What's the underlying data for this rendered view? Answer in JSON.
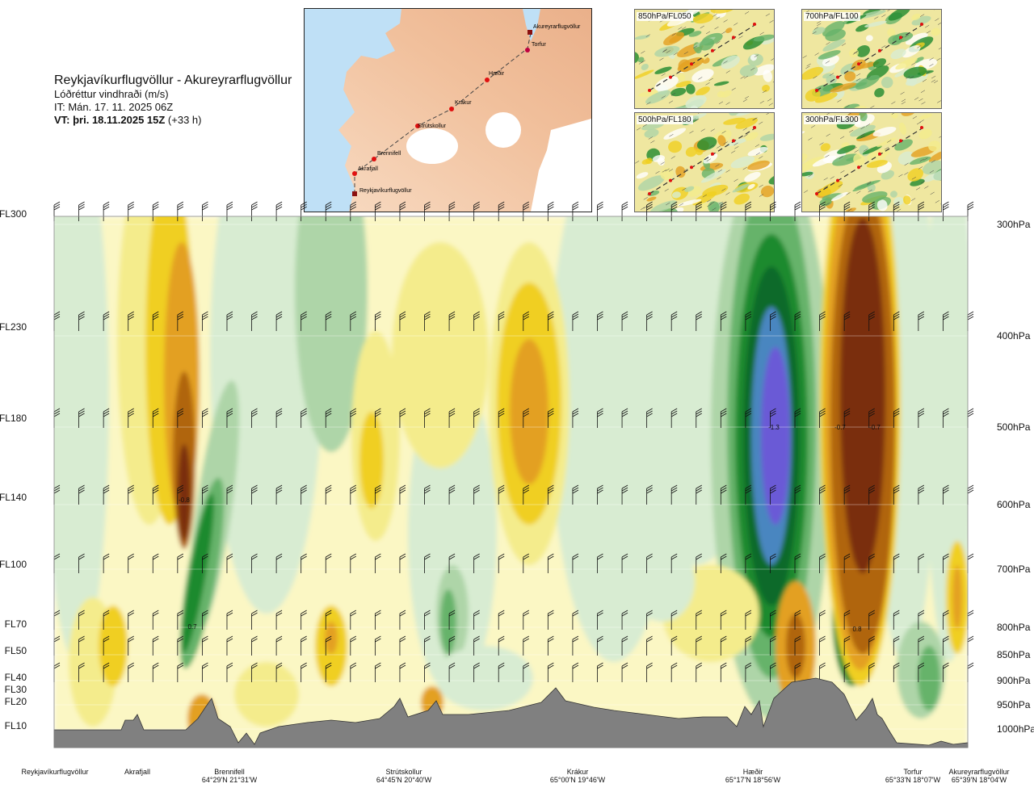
{
  "header": {
    "title": "Reykjavíkurflugvöllur - Akureyrarflugvöllur",
    "subtitle": "Lóðréttur vindhraði (m/s)",
    "issue_time": "IT: Mán. 17. 11. 2025 06Z",
    "valid_time_bold": "VT: þri. 18.11.2025 15Z",
    "valid_time_offset": " (+33 h)"
  },
  "route_map": {
    "points": [
      "Akureyrarflugvöllur",
      "Torfur",
      "Hæðir",
      "Krákur",
      "Strútskollur",
      "Brennifell",
      "Akrafjall",
      "Reykjavíkurflugvöllur"
    ]
  },
  "inset_maps": [
    {
      "label": "850hPa/FL050"
    },
    {
      "label": "700hPa/FL100"
    },
    {
      "label": "500hPa/FL180"
    },
    {
      "label": "300hPa/FL300"
    }
  ],
  "chart_data": {
    "type": "heatmap",
    "title": "Lóðréttur vindhraði (m/s)",
    "y_left_ticks": [
      "FL300",
      "FL230",
      "FL180",
      "FL140",
      "FL100",
      "FL70",
      "FL50",
      "FL40",
      "FL30",
      "FL20",
      "FL10"
    ],
    "y_right_ticks": [
      "300hPa",
      "400hPa",
      "500hPa",
      "600hPa",
      "700hPa",
      "800hPa",
      "850hPa",
      "900hPa",
      "950hPa",
      "1000hPa"
    ],
    "pressure_levels_hpa": [
      300,
      400,
      500,
      600,
      700,
      800,
      850,
      900,
      950,
      1000
    ],
    "waypoints": [
      {
        "name": "Reykjavíkurflugvöllur",
        "coord": ""
      },
      {
        "name": "Akrafjall",
        "coord": ""
      },
      {
        "name": "Brennifell",
        "coord": "64°29'N 21°31'W"
      },
      {
        "name": "Strútskollur",
        "coord": "64°45'N 20°40'W"
      },
      {
        "name": "Krákur",
        "coord": "65°00'N 19°46'W"
      },
      {
        "name": "Hæðir",
        "coord": "65°17'N 18°56'W"
      },
      {
        "name": "Torfur",
        "coord": "65°33'N 18°07'W"
      },
      {
        "name": "Akureyrarflugvöllur",
        "coord": "65°39'N 18°04'W"
      }
    ],
    "annotations": [
      "-0.8",
      "0.7",
      "-1.3",
      "-0.7",
      "-0.7",
      "0.8"
    ],
    "colors": {
      "strong_down": "#7a2e0a",
      "down_3": "#b0650f",
      "down_2": "#e3a021",
      "down_1": "#f0cf20",
      "down_0": "#f4ec8c",
      "neutral_down": "#fbf7c4",
      "neutral_up": "#d8ecd2",
      "up_1": "#aed5a8",
      "up_2": "#66b36a",
      "up_3": "#1f8a2e",
      "up_4": "#0f6a2a",
      "up_5": "#4a86c0",
      "strong_up": "#6a5ad6",
      "terrain": "#808080"
    }
  }
}
